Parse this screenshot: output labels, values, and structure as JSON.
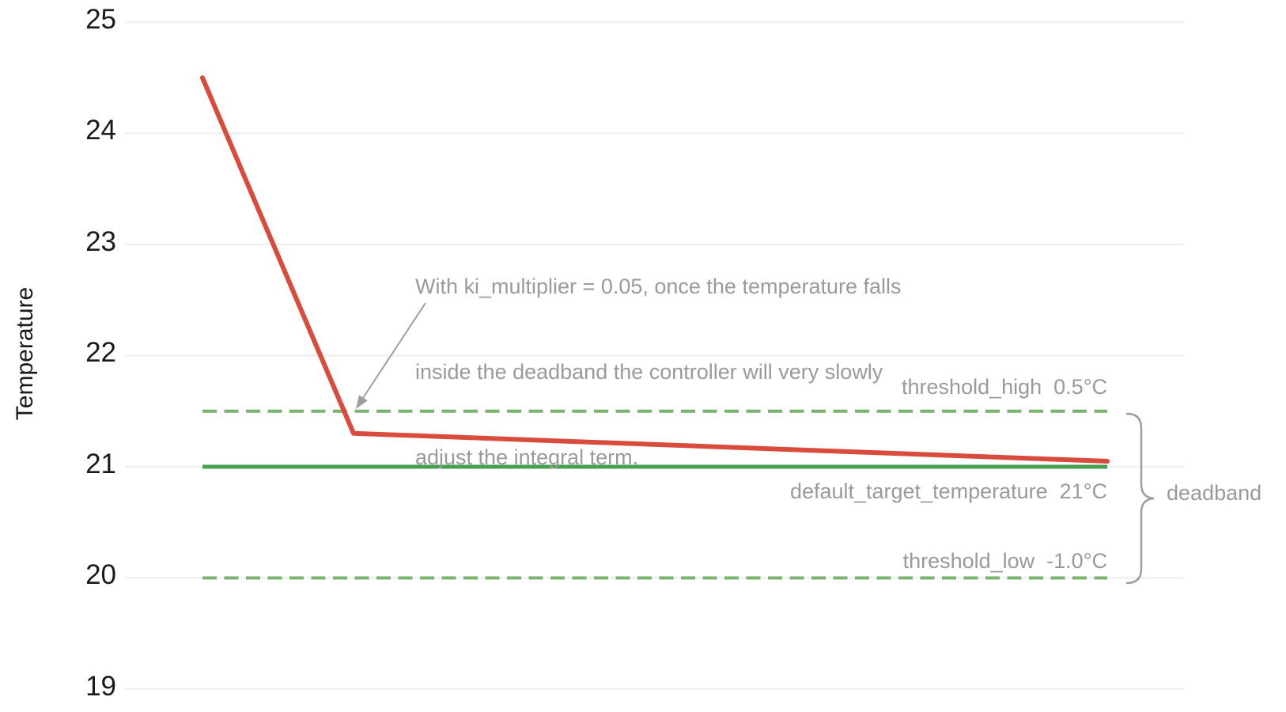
{
  "chart_data": {
    "type": "line",
    "title": "",
    "xlabel": "",
    "ylabel": "Temperature",
    "yticks": [
      25,
      24,
      23,
      22,
      21,
      20,
      19
    ],
    "ylim": [
      19,
      25
    ],
    "x_range": [
      0,
      1
    ],
    "grid": "horizontal",
    "legend": "none",
    "colors": {
      "grid": "#efefef",
      "series_red": "#d94c3d",
      "target_green": "#47a04f",
      "threshold_green": "#79b46e",
      "annotation_gray": "#9a9a9a",
      "arrow_gray": "#9e9e9e",
      "axis_text": "#1a1a1a"
    },
    "series": [
      {
        "name": "temperature",
        "color": "#d94c3d",
        "style": "solid",
        "points": [
          {
            "x": 0.0,
            "y": 24.5
          },
          {
            "x": 0.167,
            "y": 21.3
          },
          {
            "x": 1.0,
            "y": 21.05
          }
        ]
      }
    ],
    "reference_lines": [
      {
        "name": "threshold_high",
        "value": 21.5,
        "label": "threshold_high  0.5°C",
        "style": "dashed",
        "color": "#79b46e"
      },
      {
        "name": "default_target_temperature",
        "value": 21.0,
        "label": "default_target_temperature  21°C",
        "style": "solid",
        "color": "#47a04f"
      },
      {
        "name": "threshold_low",
        "value": 20.0,
        "label": "threshold_low  -1.0°C",
        "style": "dashed",
        "color": "#79b46e"
      }
    ],
    "annotation": {
      "lines": [
        "With ki_multiplier = 0.05, once the temperature falls",
        "inside the deadband the controller will very slowly",
        "adjust the integral term."
      ],
      "points_to": "temperature line entering the deadband"
    },
    "brace_label": "deadband"
  }
}
